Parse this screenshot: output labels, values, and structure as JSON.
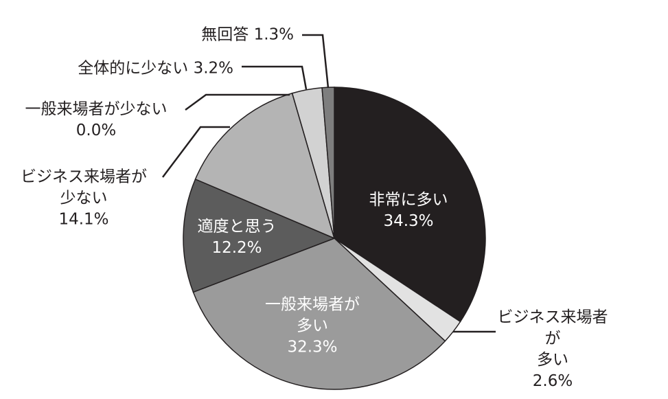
{
  "chart_data": {
    "type": "pie",
    "categories": [
      "非常に多い",
      "ビジネス来場者が\n多い",
      "一般来場者が\n多い",
      "適度と思う",
      "ビジネス来場者が\n少ない",
      "一般来場者が少ない",
      "全体的に少ない",
      "無回答"
    ],
    "values": [
      34.3,
      2.6,
      32.3,
      12.2,
      14.1,
      0,
      3.2,
      1.3
    ],
    "value_labels": [
      "34.3%",
      "2.6%",
      "32.3%",
      "12.2%",
      "14.1%",
      "0.0%",
      "3.2%",
      "1.3%"
    ],
    "colors": [
      "#231f20",
      "#e2e2e2",
      "#9b9b9b",
      "#5c5c5c",
      "#b4b4b4",
      "#8a8a8a",
      "#d2d2d2",
      "#7e7e7e"
    ]
  }
}
